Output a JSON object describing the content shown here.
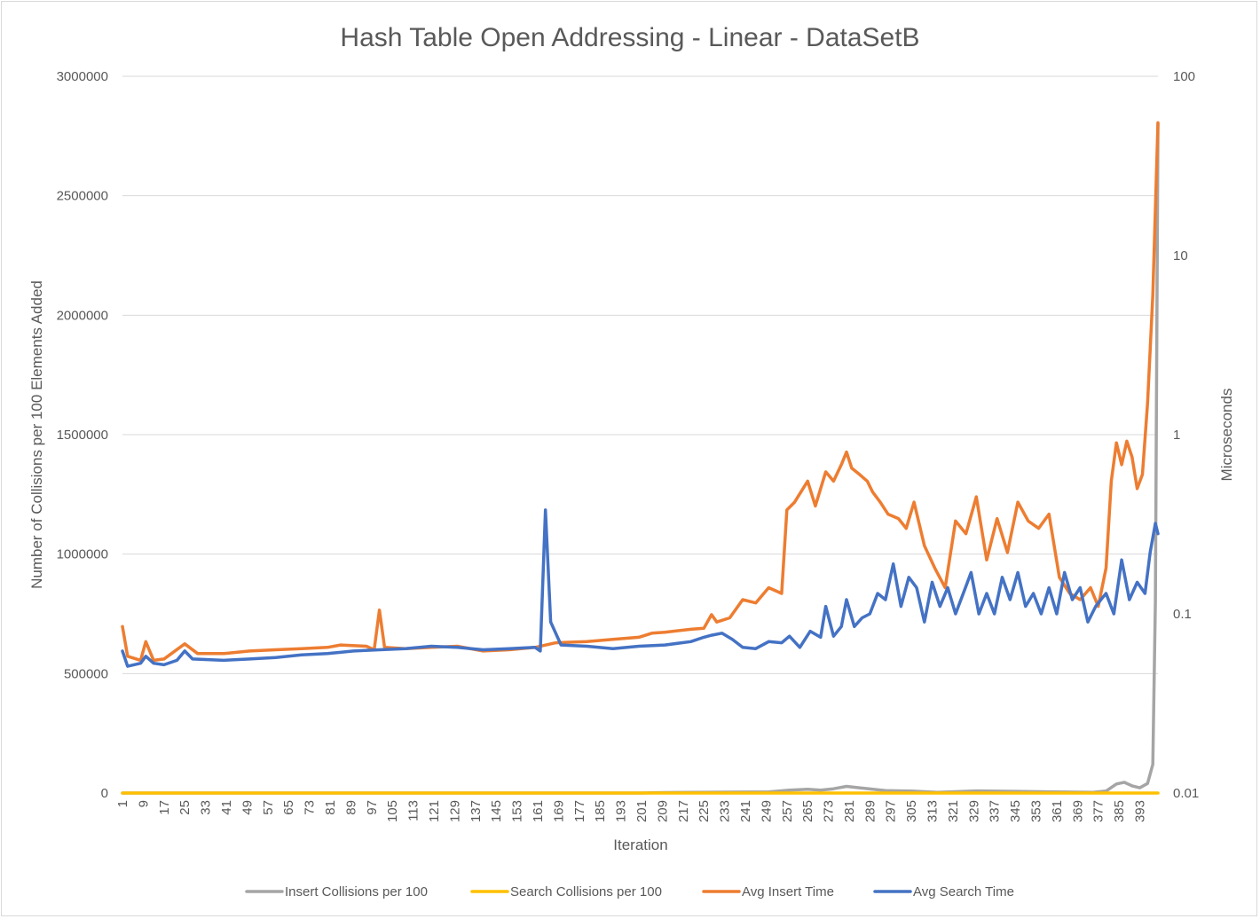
{
  "chart_data": {
    "type": "line",
    "title": "Hash Table Open Addressing - Linear - DataSetB",
    "xlabel": "Iteration",
    "ylabel_left": "Number of Collisions per 100 Elements Added",
    "ylabel_right": "Microseconds",
    "x_range": [
      1,
      400
    ],
    "x_tick_labels": [
      "1",
      "9",
      "17",
      "25",
      "33",
      "41",
      "49",
      "57",
      "65",
      "73",
      "81",
      "89",
      "97",
      "105",
      "113",
      "121",
      "129",
      "137",
      "145",
      "153",
      "161",
      "169",
      "177",
      "185",
      "193",
      "201",
      "209",
      "217",
      "225",
      "233",
      "241",
      "249",
      "257",
      "265",
      "273",
      "281",
      "289",
      "297",
      "305",
      "313",
      "321",
      "329",
      "337",
      "345",
      "353",
      "361",
      "369",
      "377",
      "385",
      "393"
    ],
    "y_left": {
      "min": 0,
      "max": 3000000,
      "tick_labels": [
        "0",
        "500000",
        "1000000",
        "1500000",
        "2000000",
        "2500000",
        "3000000"
      ]
    },
    "y_right": {
      "scale": "log",
      "min": 0.01,
      "max": 100,
      "tick_labels": [
        "0.01",
        "0.1",
        "1",
        "10",
        "100"
      ]
    },
    "grid": true,
    "legend_position": "bottom",
    "series": [
      {
        "name": "Insert Collisions per 100",
        "axis": "left",
        "color": "#a5a5a5",
        "points": [
          [
            1,
            0
          ],
          [
            200,
            0
          ],
          [
            210,
            2000
          ],
          [
            250,
            5000
          ],
          [
            258,
            12000
          ],
          [
            265,
            16000
          ],
          [
            270,
            12000
          ],
          [
            275,
            18000
          ],
          [
            280,
            28000
          ],
          [
            285,
            22000
          ],
          [
            295,
            10000
          ],
          [
            305,
            8000
          ],
          [
            315,
            3000
          ],
          [
            330,
            9000
          ],
          [
            345,
            7000
          ],
          [
            360,
            5000
          ],
          [
            375,
            3000
          ],
          [
            380,
            8000
          ],
          [
            384,
            38000
          ],
          [
            387,
            45000
          ],
          [
            390,
            30000
          ],
          [
            393,
            22000
          ],
          [
            396,
            40000
          ],
          [
            398,
            120000
          ],
          [
            399,
            800000
          ],
          [
            400,
            2800000
          ]
        ]
      },
      {
        "name": "Search Collisions per 100",
        "axis": "left",
        "color": "#ffc000",
        "points": [
          [
            1,
            0
          ],
          [
            100,
            0
          ],
          [
            200,
            0
          ],
          [
            300,
            0
          ],
          [
            400,
            0
          ]
        ]
      },
      {
        "name": "Avg Insert Time",
        "axis": "right",
        "color": "#ed7d31",
        "points": [
          [
            1,
            0.085
          ],
          [
            3,
            0.058
          ],
          [
            8,
            0.055
          ],
          [
            10,
            0.07
          ],
          [
            13,
            0.055
          ],
          [
            17,
            0.056
          ],
          [
            25,
            0.068
          ],
          [
            30,
            0.06
          ],
          [
            40,
            0.06
          ],
          [
            50,
            0.062
          ],
          [
            60,
            0.063
          ],
          [
            70,
            0.064
          ],
          [
            80,
            0.065
          ],
          [
            85,
            0.067
          ],
          [
            95,
            0.066
          ],
          [
            98,
            0.063
          ],
          [
            100,
            0.105
          ],
          [
            102,
            0.065
          ],
          [
            110,
            0.064
          ],
          [
            120,
            0.065
          ],
          [
            130,
            0.066
          ],
          [
            140,
            0.062
          ],
          [
            150,
            0.063
          ],
          [
            160,
            0.065
          ],
          [
            168,
            0.069
          ],
          [
            180,
            0.07
          ],
          [
            190,
            0.072
          ],
          [
            200,
            0.074
          ],
          [
            205,
            0.078
          ],
          [
            210,
            0.079
          ],
          [
            220,
            0.082
          ],
          [
            225,
            0.083
          ],
          [
            228,
            0.099
          ],
          [
            230,
            0.09
          ],
          [
            235,
            0.095
          ],
          [
            240,
            0.12
          ],
          [
            245,
            0.115
          ],
          [
            250,
            0.14
          ],
          [
            255,
            0.13
          ],
          [
            257,
            0.38
          ],
          [
            260,
            0.42
          ],
          [
            265,
            0.55
          ],
          [
            268,
            0.4
          ],
          [
            272,
            0.62
          ],
          [
            275,
            0.55
          ],
          [
            278,
            0.68
          ],
          [
            280,
            0.8
          ],
          [
            282,
            0.65
          ],
          [
            285,
            0.6
          ],
          [
            288,
            0.55
          ],
          [
            290,
            0.48
          ],
          [
            293,
            0.42
          ],
          [
            296,
            0.36
          ],
          [
            300,
            0.34
          ],
          [
            303,
            0.3
          ],
          [
            306,
            0.42
          ],
          [
            310,
            0.24
          ],
          [
            314,
            0.18
          ],
          [
            318,
            0.14
          ],
          [
            322,
            0.33
          ],
          [
            326,
            0.28
          ],
          [
            330,
            0.45
          ],
          [
            334,
            0.2
          ],
          [
            338,
            0.34
          ],
          [
            342,
            0.22
          ],
          [
            346,
            0.42
          ],
          [
            350,
            0.33
          ],
          [
            354,
            0.3
          ],
          [
            358,
            0.36
          ],
          [
            362,
            0.16
          ],
          [
            366,
            0.13
          ],
          [
            370,
            0.12
          ],
          [
            374,
            0.14
          ],
          [
            377,
            0.11
          ],
          [
            380,
            0.18
          ],
          [
            382,
            0.55
          ],
          [
            384,
            0.9
          ],
          [
            386,
            0.68
          ],
          [
            388,
            0.92
          ],
          [
            390,
            0.75
          ],
          [
            392,
            0.5
          ],
          [
            394,
            0.6
          ],
          [
            396,
            1.5
          ],
          [
            398,
            6.0
          ],
          [
            400,
            55.0
          ]
        ]
      },
      {
        "name": "Avg Search Time",
        "axis": "right",
        "color": "#4472c4",
        "points": [
          [
            1,
            0.062
          ],
          [
            3,
            0.051
          ],
          [
            8,
            0.053
          ],
          [
            10,
            0.058
          ],
          [
            13,
            0.053
          ],
          [
            17,
            0.052
          ],
          [
            22,
            0.055
          ],
          [
            25,
            0.062
          ],
          [
            28,
            0.056
          ],
          [
            40,
            0.055
          ],
          [
            50,
            0.056
          ],
          [
            60,
            0.057
          ],
          [
            70,
            0.059
          ],
          [
            80,
            0.06
          ],
          [
            90,
            0.062
          ],
          [
            100,
            0.063
          ],
          [
            110,
            0.064
          ],
          [
            120,
            0.066
          ],
          [
            130,
            0.065
          ],
          [
            140,
            0.063
          ],
          [
            150,
            0.064
          ],
          [
            160,
            0.065
          ],
          [
            162,
            0.062
          ],
          [
            164,
            0.38
          ],
          [
            166,
            0.09
          ],
          [
            170,
            0.067
          ],
          [
            180,
            0.066
          ],
          [
            190,
            0.064
          ],
          [
            200,
            0.066
          ],
          [
            210,
            0.067
          ],
          [
            220,
            0.07
          ],
          [
            225,
            0.074
          ],
          [
            228,
            0.076
          ],
          [
            232,
            0.078
          ],
          [
            236,
            0.072
          ],
          [
            240,
            0.065
          ],
          [
            245,
            0.064
          ],
          [
            250,
            0.07
          ],
          [
            255,
            0.069
          ],
          [
            258,
            0.075
          ],
          [
            262,
            0.065
          ],
          [
            266,
            0.08
          ],
          [
            270,
            0.074
          ],
          [
            272,
            0.11
          ],
          [
            275,
            0.075
          ],
          [
            278,
            0.085
          ],
          [
            280,
            0.12
          ],
          [
            283,
            0.085
          ],
          [
            286,
            0.095
          ],
          [
            289,
            0.1
          ],
          [
            292,
            0.13
          ],
          [
            295,
            0.12
          ],
          [
            298,
            0.19
          ],
          [
            301,
            0.11
          ],
          [
            304,
            0.16
          ],
          [
            307,
            0.14
          ],
          [
            310,
            0.09
          ],
          [
            313,
            0.15
          ],
          [
            316,
            0.11
          ],
          [
            319,
            0.14
          ],
          [
            322,
            0.1
          ],
          [
            325,
            0.13
          ],
          [
            328,
            0.17
          ],
          [
            331,
            0.1
          ],
          [
            334,
            0.13
          ],
          [
            337,
            0.1
          ],
          [
            340,
            0.16
          ],
          [
            343,
            0.12
          ],
          [
            346,
            0.17
          ],
          [
            349,
            0.11
          ],
          [
            352,
            0.13
          ],
          [
            355,
            0.1
          ],
          [
            358,
            0.14
          ],
          [
            361,
            0.1
          ],
          [
            364,
            0.17
          ],
          [
            367,
            0.12
          ],
          [
            370,
            0.14
          ],
          [
            373,
            0.09
          ],
          [
            376,
            0.11
          ],
          [
            378,
            0.12
          ],
          [
            380,
            0.13
          ],
          [
            383,
            0.1
          ],
          [
            386,
            0.2
          ],
          [
            389,
            0.12
          ],
          [
            392,
            0.15
          ],
          [
            395,
            0.13
          ],
          [
            397,
            0.22
          ],
          [
            399,
            0.32
          ],
          [
            400,
            0.28
          ]
        ]
      }
    ]
  }
}
